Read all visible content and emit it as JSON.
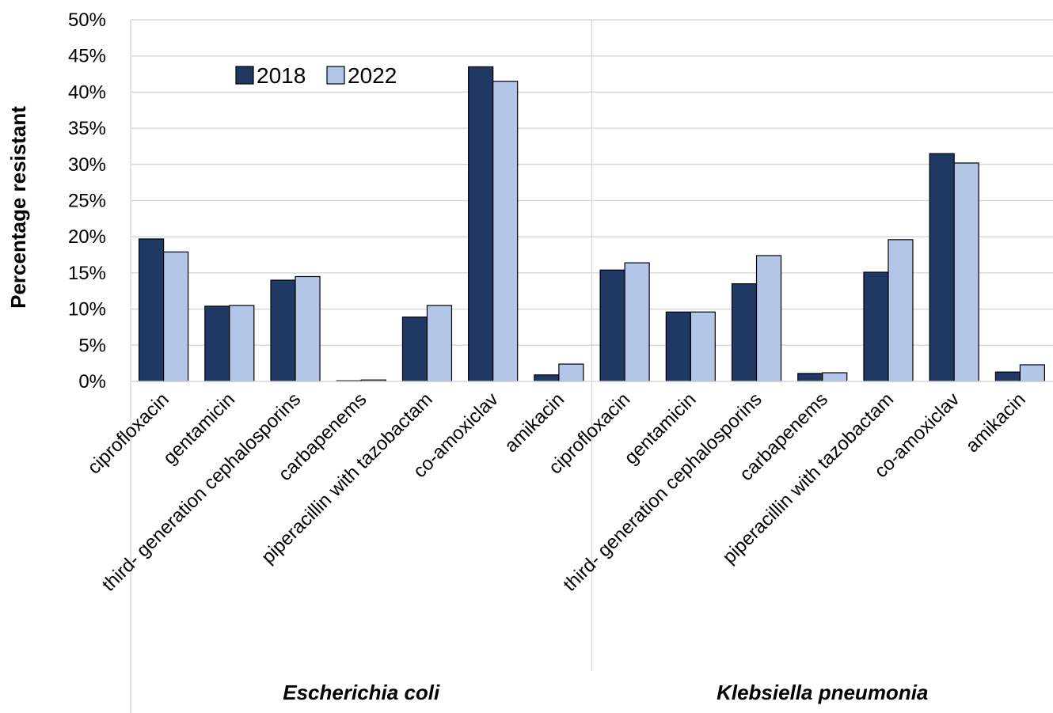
{
  "chart_data": {
    "type": "bar",
    "ylabel": "Percentage resistant",
    "ylim": [
      0,
      50
    ],
    "y_ticks": [
      "0%",
      "5%",
      "10%",
      "15%",
      "20%",
      "25%",
      "30%",
      "35%",
      "40%",
      "45%",
      "50%"
    ],
    "grid": true,
    "legend_position": "top-left",
    "groups": [
      {
        "label": "Escherichia coli",
        "categories": [
          "ciprofloxacin",
          "gentamicin",
          "third- generation cephalosporins",
          "carbapenems",
          "piperacillin with tazobactam",
          "co-amoxiclav",
          "amikacin"
        ]
      },
      {
        "label": "Klebsiella pneumonia",
        "categories": [
          "ciprofloxacin",
          "gentamicin",
          "third- generation cephalosporins",
          "carbapenems",
          "piperacillin with tazobactam",
          "co-amoxiclav",
          "amikacin"
        ]
      }
    ],
    "series": [
      {
        "name": "2018",
        "color": "#1f3864",
        "values": [
          19.7,
          10.4,
          14.0,
          0.1,
          8.9,
          43.5,
          0.9,
          15.4,
          9.6,
          13.5,
          1.1,
          15.1,
          31.5,
          1.3
        ]
      },
      {
        "name": "2022",
        "color": "#b4c6e7",
        "values": [
          17.9,
          10.5,
          14.5,
          0.2,
          10.5,
          41.5,
          2.4,
          16.4,
          9.6,
          17.4,
          1.2,
          19.6,
          30.2,
          2.3
        ]
      }
    ]
  }
}
